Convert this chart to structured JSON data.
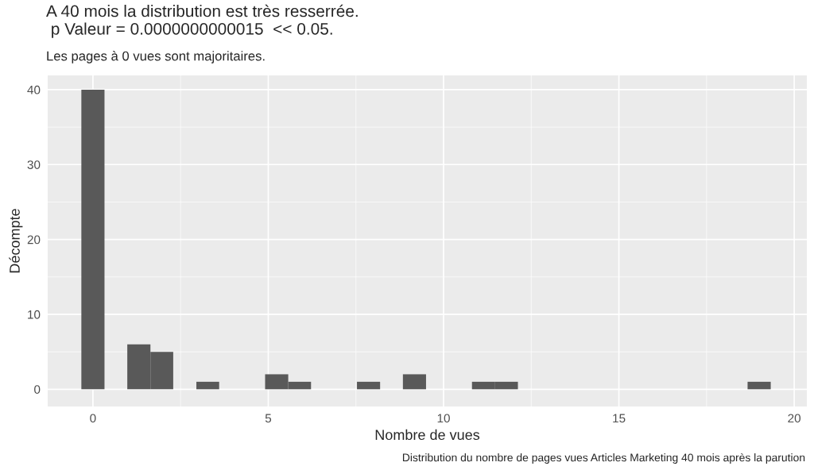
{
  "chart_data": {
    "type": "histogram",
    "title": "A 40 mois la distribution est très resserrée.\n p Valeur = 0.0000000000015  << 0.05.",
    "subtitle": "Les pages à 0 vues sont majoritaires.",
    "xlabel": "Nombre de vues",
    "ylabel": "Décompte",
    "annotations": [
      "Distribution du nombre de pages vues Articles Marketing 40 mois après la parution"
    ],
    "bins": [
      -0.33,
      0.33,
      0.98,
      1.64,
      2.29,
      2.95,
      3.6,
      4.26,
      4.91,
      5.57,
      6.22,
      6.88,
      7.53,
      8.19,
      8.84,
      9.5,
      10.16,
      10.81,
      11.47,
      12.12,
      12.78,
      13.43,
      14.09,
      14.74,
      15.4,
      16.05,
      16.71,
      17.36,
      18.02,
      18.67,
      19.33
    ],
    "values": [
      40,
      0,
      6,
      5,
      0,
      1,
      0,
      0,
      2,
      1,
      0,
      0,
      1,
      0,
      2,
      0,
      0,
      1,
      1,
      0,
      0,
      0,
      0,
      0,
      0,
      0,
      0,
      0,
      0,
      1
    ],
    "color": "#595959",
    "xlim": [
      -1.29,
      20.36
    ],
    "ylim": [
      -2.3,
      41.9
    ],
    "xticks": [
      0,
      5,
      10,
      15,
      20
    ],
    "yticks": [
      0,
      10,
      20,
      30,
      40
    ],
    "grid": true,
    "legend": false
  }
}
